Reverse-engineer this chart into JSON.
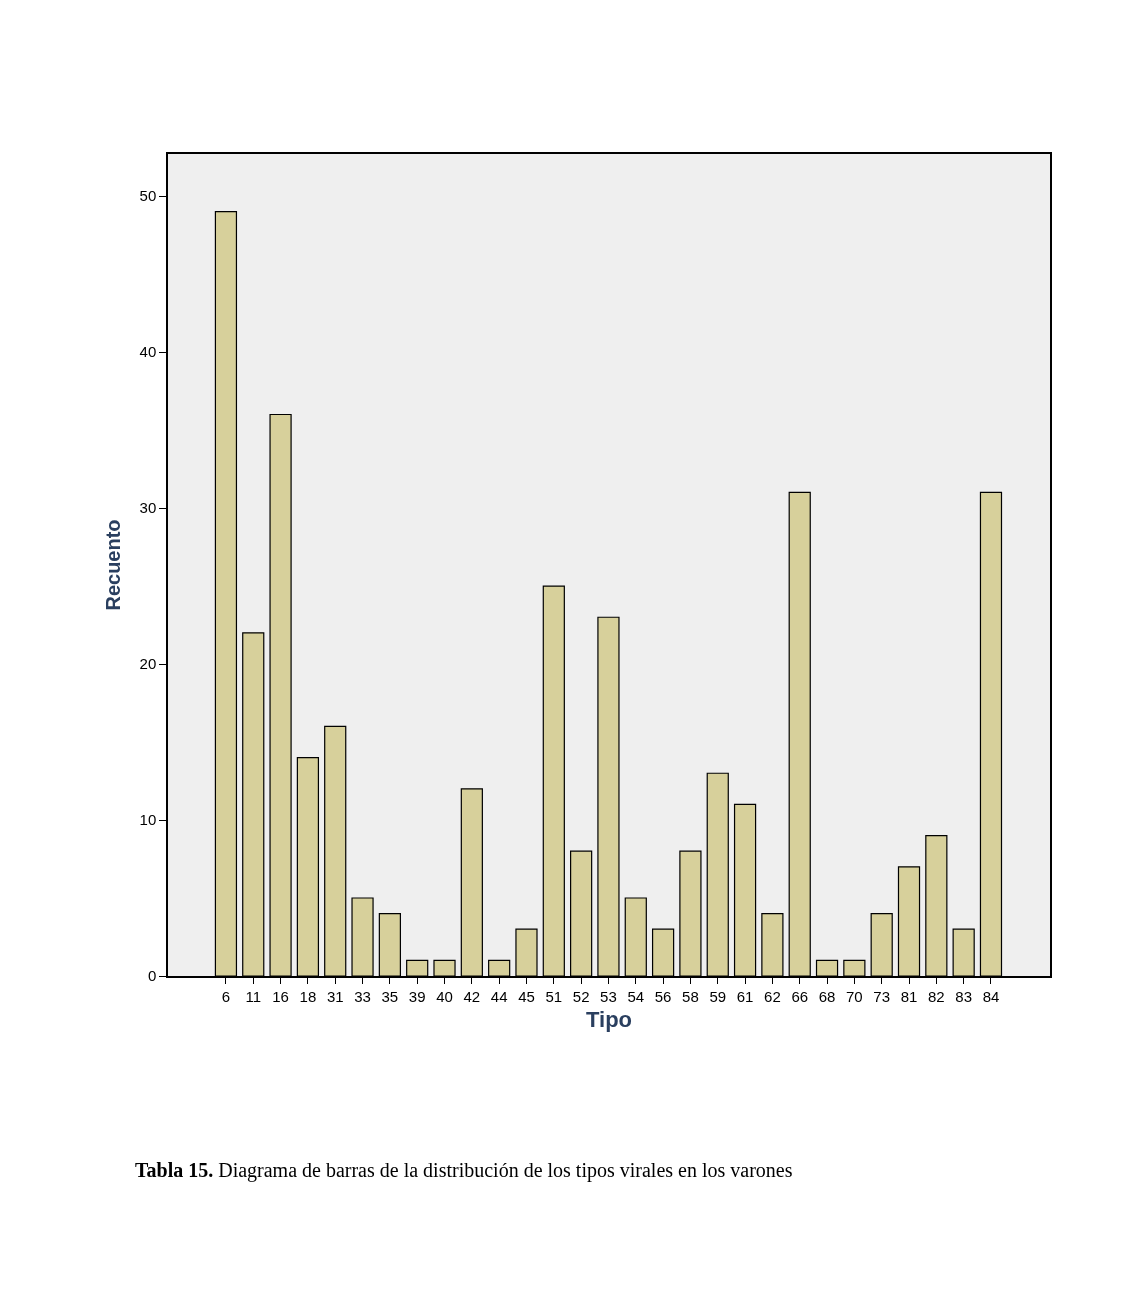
{
  "chart_data": {
    "type": "bar",
    "xlabel": "Tipo",
    "ylabel": "Recuento",
    "categories": [
      "6",
      "11",
      "16",
      "18",
      "31",
      "33",
      "35",
      "39",
      "40",
      "42",
      "44",
      "45",
      "51",
      "52",
      "53",
      "54",
      "56",
      "58",
      "59",
      "61",
      "62",
      "66",
      "68",
      "70",
      "73",
      "81",
      "82",
      "83",
      "84"
    ],
    "values": [
      49,
      22,
      36,
      14,
      16,
      5,
      4,
      1,
      1,
      12,
      1,
      3,
      25,
      8,
      23,
      5,
      3,
      8,
      13,
      11,
      4,
      31,
      1,
      1,
      4,
      7,
      9,
      3,
      31
    ],
    "color": "#d7d09b",
    "ylim": [
      0,
      52.7
    ],
    "yticks": [
      0,
      10,
      20,
      30,
      40,
      50
    ],
    "grid": false,
    "legend": false,
    "annotations": [
      "Tabla 15.",
      "Diagrama de barras de la distribución de los tipos virales en los varones"
    ]
  }
}
